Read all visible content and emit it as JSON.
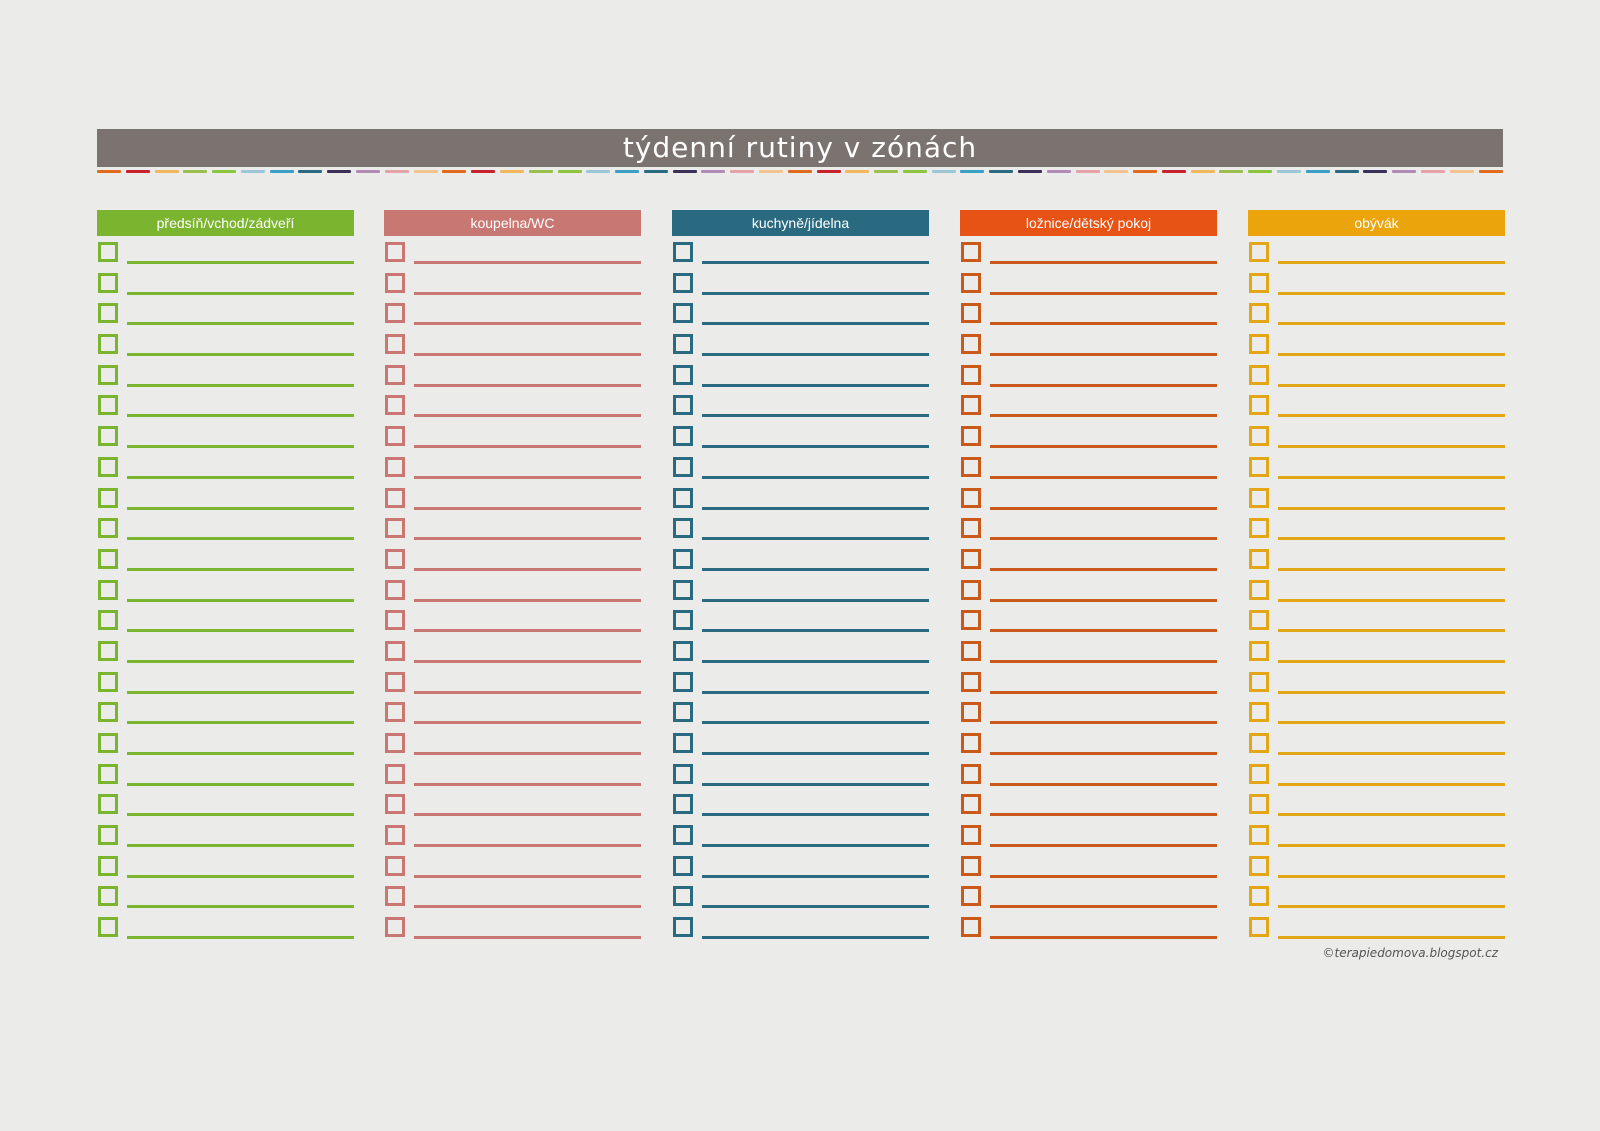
{
  "title": "týdenní rutiny v zónách",
  "zones": [
    {
      "label": "předsíň/vchod/zádveří",
      "color": "#7bb52f"
    },
    {
      "label": "koupelna/WC",
      "color": "#c97772"
    },
    {
      "label": "kuchyně/jídelna",
      "color": "#2a6a81"
    },
    {
      "label": "ložnice/dětský pokoj",
      "color": "#e65314"
    },
    {
      "label": "obývák",
      "color": "#eba40c"
    }
  ],
  "row_line_colors": [
    "#7bb52f",
    "#c97772",
    "#2a6a81",
    "#c95a1c",
    "#e2a617"
  ],
  "rows_per_zone": 23,
  "dash_colors": [
    "#e06b1c",
    "#c8232c",
    "#f0b85a",
    "#9bbf4f",
    "#8cc63f",
    "#9cc7d8",
    "#3aa0c8",
    "#2a6a81",
    "#3b2f5a",
    "#b18ab8",
    "#e5a3a8",
    "#f2c28f"
  ],
  "copyright": "©terapiedomova.blogspot.cz"
}
